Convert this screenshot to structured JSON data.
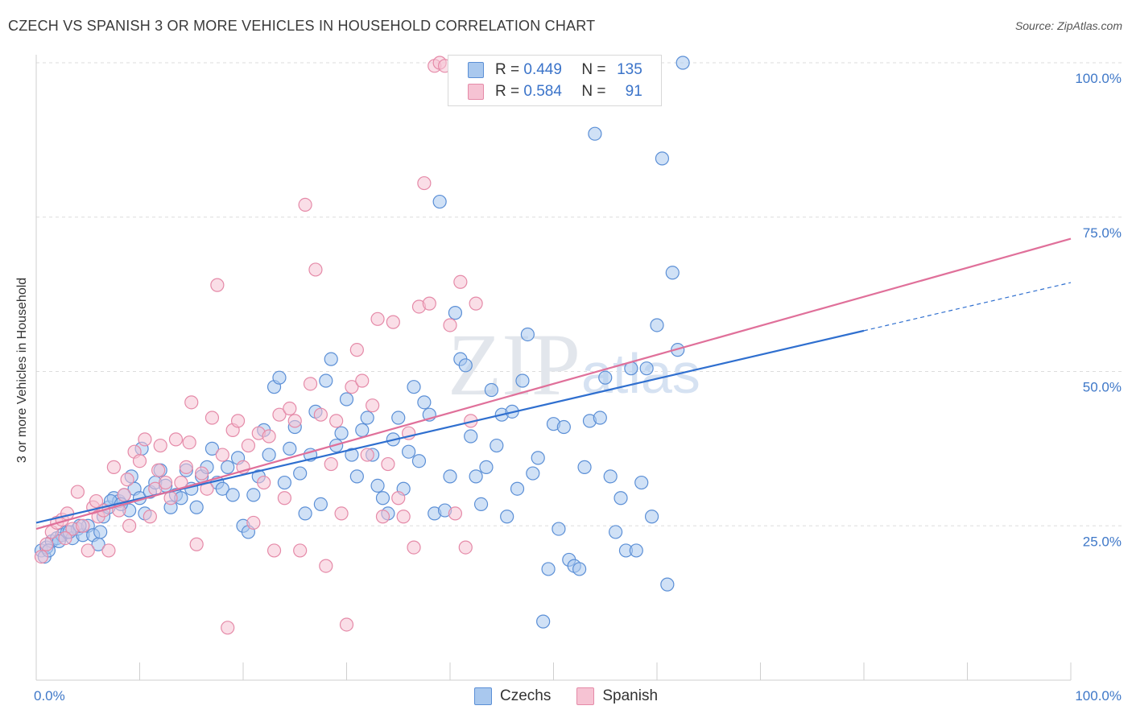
{
  "title": "CZECH VS SPANISH 3 OR MORE VEHICLES IN HOUSEHOLD CORRELATION CHART",
  "source": "Source: ZipAtlas.com",
  "watermark": {
    "zip": "ZIP",
    "atlas": "atlas"
  },
  "legend": {
    "r_label": "R =",
    "n_label": "N =",
    "rows": [
      {
        "r": "0.449",
        "n": "135"
      },
      {
        "r": "0.584",
        "n": "91"
      }
    ]
  },
  "colors": {
    "czechs_fill": "#a9c8ee",
    "czechs_stroke": "#5b8fd6",
    "czechs_line": "#2f6fcf",
    "spanish_fill": "#f6c3d3",
    "spanish_stroke": "#e58aa8",
    "spanish_line": "#e0709a",
    "tick_label": "#3f78c8",
    "grid": "#dddddd"
  },
  "chart_data": {
    "type": "scatter",
    "title": "CZECH VS SPANISH 3 OR MORE VEHICLES IN HOUSEHOLD CORRELATION CHART",
    "xlabel": "",
    "ylabel": "3 or more Vehicles in Household",
    "xlim": [
      0,
      100
    ],
    "ylim": [
      0,
      100
    ],
    "x_tick_labels": [
      "0.0%",
      "100.0%"
    ],
    "y_tick_labels": [
      "25.0%",
      "50.0%",
      "75.0%",
      "100.0%"
    ],
    "y_ticks": [
      25,
      50,
      75,
      100
    ],
    "grid": true,
    "legend_position": "bottom-center",
    "series": [
      {
        "name": "Czechs",
        "r": 0.449,
        "n": 135,
        "trend": {
          "x0": 0,
          "y0": 25.5,
          "x1": 80,
          "y1": 56.6,
          "dashed_to_x": 100,
          "dashed_to_y": 64.4
        },
        "points": [
          [
            0.5,
            21
          ],
          [
            0.8,
            20
          ],
          [
            1,
            21.5
          ],
          [
            1.5,
            22.5
          ],
          [
            2,
            23
          ],
          [
            2.5,
            23.5
          ],
          [
            3,
            24
          ],
          [
            3.5,
            23
          ],
          [
            4,
            24.5
          ],
          [
            4.5,
            23.5
          ],
          [
            5,
            25
          ],
          [
            5.5,
            23.5
          ],
          [
            6,
            22
          ],
          [
            6.5,
            26.5
          ],
          [
            7,
            28
          ],
          [
            7.5,
            29.5
          ],
          [
            8,
            29
          ],
          [
            8.5,
            30
          ],
          [
            9,
            27.5
          ],
          [
            9.5,
            31
          ],
          [
            10,
            29.5
          ],
          [
            10.5,
            27
          ],
          [
            11,
            30.5
          ],
          [
            11.5,
            32
          ],
          [
            12,
            34
          ],
          [
            12.5,
            31.5
          ],
          [
            13,
            28
          ],
          [
            13.5,
            30
          ],
          [
            14,
            29.5
          ],
          [
            14.5,
            34
          ],
          [
            15,
            31
          ],
          [
            15.5,
            28
          ],
          [
            16,
            33
          ],
          [
            16.5,
            34.5
          ],
          [
            17,
            37.5
          ],
          [
            17.5,
            32
          ],
          [
            18,
            31
          ],
          [
            18.5,
            34.5
          ],
          [
            19,
            30
          ],
          [
            19.5,
            36
          ],
          [
            20,
            25
          ],
          [
            20.5,
            24
          ],
          [
            21,
            30
          ],
          [
            21.5,
            33
          ],
          [
            22,
            40.5
          ],
          [
            22.5,
            36.5
          ],
          [
            23,
            47.5
          ],
          [
            23.5,
            49
          ],
          [
            24,
            32
          ],
          [
            24.5,
            37.5
          ],
          [
            25,
            41
          ],
          [
            25.5,
            33.5
          ],
          [
            26,
            27
          ],
          [
            26.5,
            36.5
          ],
          [
            27,
            43.5
          ],
          [
            27.5,
            28.5
          ],
          [
            28,
            48.5
          ],
          [
            28.5,
            52
          ],
          [
            29,
            38
          ],
          [
            29.5,
            40
          ],
          [
            30,
            45.5
          ],
          [
            30.5,
            36.5
          ],
          [
            31,
            33
          ],
          [
            31.5,
            40.5
          ],
          [
            32,
            42.5
          ],
          [
            32.5,
            36.5
          ],
          [
            33,
            31.5
          ],
          [
            33.5,
            29.5
          ],
          [
            34,
            27
          ],
          [
            34.5,
            39
          ],
          [
            35,
            42.5
          ],
          [
            35.5,
            31
          ],
          [
            36,
            37
          ],
          [
            36.5,
            47.5
          ],
          [
            37,
            35.5
          ],
          [
            37.5,
            45
          ],
          [
            38,
            43
          ],
          [
            38.5,
            27
          ],
          [
            39,
            77.5
          ],
          [
            39.5,
            27.5
          ],
          [
            40,
            33
          ],
          [
            40.5,
            59.5
          ],
          [
            41,
            52
          ],
          [
            41.5,
            51
          ],
          [
            42,
            39.5
          ],
          [
            42.5,
            33
          ],
          [
            43,
            28.5
          ],
          [
            43.5,
            34.5
          ],
          [
            44,
            47
          ],
          [
            44.5,
            38
          ],
          [
            45,
            43
          ],
          [
            45.5,
            26.5
          ],
          [
            46,
            43.5
          ],
          [
            46.5,
            31
          ],
          [
            47,
            48.5
          ],
          [
            47.5,
            56
          ],
          [
            48,
            33.5
          ],
          [
            48.5,
            36
          ],
          [
            49,
            9.5
          ],
          [
            49.5,
            18
          ],
          [
            50,
            41.5
          ],
          [
            50.5,
            24.5
          ],
          [
            51,
            41
          ],
          [
            51.5,
            19.5
          ],
          [
            52,
            18.5
          ],
          [
            52.5,
            18
          ],
          [
            53,
            34.5
          ],
          [
            53.5,
            42
          ],
          [
            54,
            88.5
          ],
          [
            54.5,
            42.5
          ],
          [
            55,
            49
          ],
          [
            55.5,
            33
          ],
          [
            56,
            24
          ],
          [
            56.5,
            29.5
          ],
          [
            57,
            21
          ],
          [
            57.5,
            50.5
          ],
          [
            58,
            21
          ],
          [
            58.5,
            32
          ],
          [
            59,
            50.5
          ],
          [
            59.5,
            26.5
          ],
          [
            60,
            57.5
          ],
          [
            60.5,
            84.5
          ],
          [
            61,
            15.5
          ],
          [
            61.5,
            66
          ],
          [
            62,
            53.5
          ],
          [
            62.5,
            100
          ],
          [
            1.2,
            21
          ],
          [
            2.2,
            22.5
          ],
          [
            3.2,
            24
          ],
          [
            4.2,
            25
          ],
          [
            6.2,
            24
          ],
          [
            7.2,
            29
          ],
          [
            8.2,
            28.5
          ],
          [
            9.2,
            33
          ],
          [
            10.2,
            37.5
          ]
        ]
      },
      {
        "name": "Spanish",
        "r": 0.584,
        "n": 91,
        "trend": {
          "x0": 0,
          "y0": 24.5,
          "x1": 100,
          "y1": 71.5
        },
        "points": [
          [
            0.5,
            20
          ],
          [
            1,
            22
          ],
          [
            1.5,
            24
          ],
          [
            2,
            25.5
          ],
          [
            2.5,
            26
          ],
          [
            3,
            27
          ],
          [
            3.5,
            24.5
          ],
          [
            4,
            30.5
          ],
          [
            4.5,
            25
          ],
          [
            5,
            21
          ],
          [
            5.5,
            28
          ],
          [
            6,
            26.5
          ],
          [
            6.5,
            27.5
          ],
          [
            7,
            21
          ],
          [
            7.5,
            34.5
          ],
          [
            8,
            27.5
          ],
          [
            8.5,
            30
          ],
          [
            9,
            25
          ],
          [
            9.5,
            37
          ],
          [
            10,
            35.5
          ],
          [
            10.5,
            39
          ],
          [
            11,
            26.5
          ],
          [
            11.5,
            31
          ],
          [
            12,
            38
          ],
          [
            12.5,
            32
          ],
          [
            13,
            29.5
          ],
          [
            13.5,
            39
          ],
          [
            14,
            32
          ],
          [
            14.5,
            34.5
          ],
          [
            15,
            45
          ],
          [
            15.5,
            22
          ],
          [
            16,
            33.5
          ],
          [
            16.5,
            31
          ],
          [
            17,
            42.5
          ],
          [
            17.5,
            64
          ],
          [
            18,
            36.5
          ],
          [
            18.5,
            8.5
          ],
          [
            19,
            40.5
          ],
          [
            19.5,
            42
          ],
          [
            20,
            34.5
          ],
          [
            20.5,
            38
          ],
          [
            21,
            25.5
          ],
          [
            21.5,
            40
          ],
          [
            22,
            32
          ],
          [
            22.5,
            39.5
          ],
          [
            23,
            21
          ],
          [
            23.5,
            43
          ],
          [
            24,
            29.5
          ],
          [
            24.5,
            44
          ],
          [
            25,
            42
          ],
          [
            25.5,
            21
          ],
          [
            26,
            77
          ],
          [
            26.5,
            48
          ],
          [
            27,
            66.5
          ],
          [
            27.5,
            43
          ],
          [
            28,
            18.5
          ],
          [
            28.5,
            35
          ],
          [
            29,
            42
          ],
          [
            29.5,
            27
          ],
          [
            30,
            9
          ],
          [
            30.5,
            47.5
          ],
          [
            31,
            53.5
          ],
          [
            31.5,
            48.5
          ],
          [
            32,
            36.5
          ],
          [
            32.5,
            44.5
          ],
          [
            33,
            58.5
          ],
          [
            33.5,
            26.5
          ],
          [
            34,
            35
          ],
          [
            34.5,
            58
          ],
          [
            35,
            29.5
          ],
          [
            35.5,
            26.5
          ],
          [
            36,
            40
          ],
          [
            36.5,
            21.5
          ],
          [
            37,
            60.5
          ],
          [
            37.5,
            80.5
          ],
          [
            38,
            61
          ],
          [
            38.5,
            99.5
          ],
          [
            39,
            100
          ],
          [
            39.5,
            99.5
          ],
          [
            40,
            57.5
          ],
          [
            40.5,
            27
          ],
          [
            41,
            64.5
          ],
          [
            41.5,
            21.5
          ],
          [
            42,
            42
          ],
          [
            42.5,
            61
          ],
          [
            43,
            99
          ],
          [
            2.8,
            23
          ],
          [
            5.8,
            29
          ],
          [
            8.8,
            32.5
          ],
          [
            11.8,
            34
          ],
          [
            14.8,
            38.5
          ]
        ]
      }
    ]
  }
}
